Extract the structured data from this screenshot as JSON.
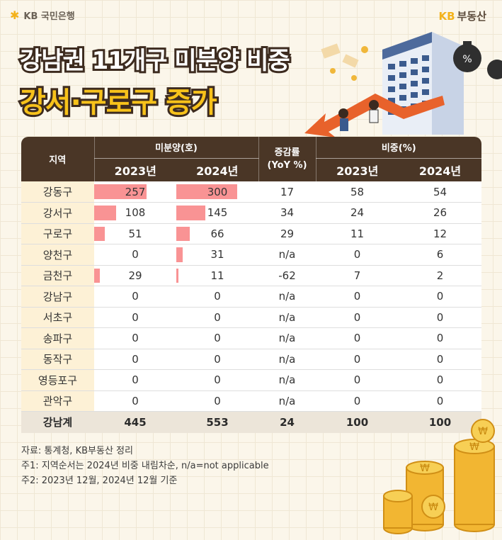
{
  "header": {
    "bank_logo": "KB 국민은행",
    "brand_kb": "KB",
    "brand_name": "부동산",
    "title_line1": "강남권 11개구 미분양 비중",
    "title_line2": "강서·구로구 증가"
  },
  "table": {
    "col_region": "지역",
    "col_unsold": "미분양(호)",
    "col_yoy_line1": "증감률",
    "col_yoy_line2": "(YoY %)",
    "col_share": "비중(%)",
    "year_2023": "2023년",
    "year_2024": "2024년",
    "max_unsold": 300,
    "rows": [
      {
        "region": "강동구",
        "u2023": 257,
        "u2024": 300,
        "yoy": "17",
        "s2023": "58",
        "s2024": "54"
      },
      {
        "region": "강서구",
        "u2023": 108,
        "u2024": 145,
        "yoy": "34",
        "s2023": "24",
        "s2024": "26"
      },
      {
        "region": "구로구",
        "u2023": 51,
        "u2024": 66,
        "yoy": "29",
        "s2023": "11",
        "s2024": "12"
      },
      {
        "region": "양천구",
        "u2023": 0,
        "u2024": 31,
        "yoy": "n/a",
        "s2023": "0",
        "s2024": "6"
      },
      {
        "region": "금천구",
        "u2023": 29,
        "u2024": 11,
        "yoy": "-62",
        "s2023": "7",
        "s2024": "2"
      },
      {
        "region": "강남구",
        "u2023": 0,
        "u2024": 0,
        "yoy": "n/a",
        "s2023": "0",
        "s2024": "0"
      },
      {
        "region": "서초구",
        "u2023": 0,
        "u2024": 0,
        "yoy": "n/a",
        "s2023": "0",
        "s2024": "0"
      },
      {
        "region": "송파구",
        "u2023": 0,
        "u2024": 0,
        "yoy": "n/a",
        "s2023": "0",
        "s2024": "0"
      },
      {
        "region": "동작구",
        "u2023": 0,
        "u2024": 0,
        "yoy": "n/a",
        "s2023": "0",
        "s2024": "0"
      },
      {
        "region": "영등포구",
        "u2023": 0,
        "u2024": 0,
        "yoy": "n/a",
        "s2023": "0",
        "s2024": "0"
      },
      {
        "region": "관악구",
        "u2023": 0,
        "u2024": 0,
        "yoy": "n/a",
        "s2023": "0",
        "s2024": "0"
      }
    ],
    "total": {
      "region": "강남계",
      "u2023": "445",
      "u2024": "553",
      "yoy": "24",
      "s2023": "100",
      "s2024": "100"
    }
  },
  "notes": {
    "source": "자료: 통계청, KB부동산 정리",
    "note1": "주1: 지역순서는 2024년 비중 내림차순, n/a=not applicable",
    "note2": "주2: 2023년 12월, 2024년 12월 기준"
  },
  "colors": {
    "header_bg": "#4a3626",
    "bar": "#f99394",
    "region_bg": "#fdf1d6",
    "accent_yellow": "#f7c21a"
  }
}
